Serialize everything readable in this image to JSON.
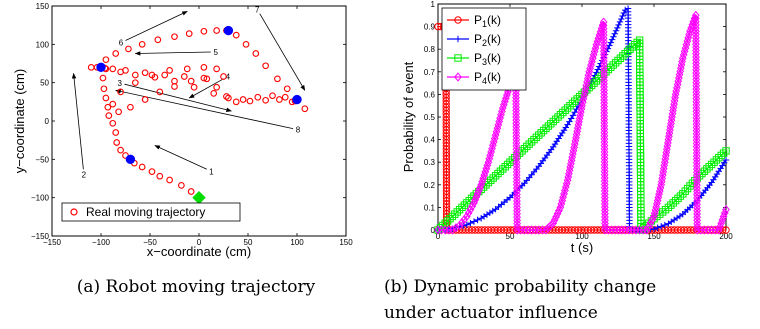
{
  "chart_data": [
    {
      "type": "scatter",
      "caption": "(a) Robot moving trajectory",
      "xlabel": "x−coordinate (cm)",
      "ylabel": "y−coordinate (cm)",
      "xlim": [
        -150,
        150
      ],
      "ylim": [
        -150,
        150
      ],
      "xticks": [
        -150,
        -100,
        -50,
        0,
        50,
        100,
        150
      ],
      "yticks": [
        -150,
        -100,
        -50,
        0,
        50,
        100,
        150
      ],
      "grid": false,
      "legend_position": "bottom",
      "colors": {
        "trajectory": "#ff0000",
        "waypoint": "#0000ff",
        "start": "#00dd00"
      },
      "legend": [
        "Real moving trajectory"
      ],
      "trajectory": [
        [
          0,
          -100
        ],
        [
          -8,
          -92
        ],
        [
          -18,
          -84
        ],
        [
          -30,
          -77
        ],
        [
          -40,
          -72
        ],
        [
          -48,
          -66
        ],
        [
          -58,
          -60
        ],
        [
          -66,
          -55
        ],
        [
          -70,
          -50
        ],
        [
          -75,
          -45
        ],
        [
          -80,
          -38
        ],
        [
          -84,
          -28
        ],
        [
          -85,
          -15
        ],
        [
          -88,
          -3
        ],
        [
          -92,
          7
        ],
        [
          -93,
          18
        ],
        [
          -95,
          30
        ],
        [
          -97,
          42
        ],
        [
          -98,
          56
        ],
        [
          -100,
          70
        ],
        [
          -95,
          80
        ],
        [
          -85,
          88
        ],
        [
          -72,
          94
        ],
        [
          -58,
          100
        ],
        [
          -42,
          106
        ],
        [
          -25,
          110
        ],
        [
          -10,
          114
        ],
        [
          5,
          117
        ],
        [
          18,
          118
        ],
        [
          28,
          118
        ],
        [
          38,
          112
        ],
        [
          48,
          100
        ],
        [
          58,
          88
        ],
        [
          68,
          72
        ],
        [
          80,
          55
        ],
        [
          90,
          42
        ],
        [
          100,
          28
        ],
        [
          108,
          16
        ],
        [
          95,
          25
        ],
        [
          82,
          28
        ],
        [
          68,
          27
        ],
        [
          52,
          26
        ],
        [
          38,
          25
        ],
        [
          28,
          32
        ],
        [
          18,
          44
        ],
        [
          8,
          55
        ],
        [
          -8,
          52
        ],
        [
          -25,
          45
        ],
        [
          -40,
          38
        ],
        [
          -55,
          28
        ],
        [
          -70,
          18
        ],
        [
          -82,
          12
        ],
        [
          -88,
          22
        ],
        [
          -80,
          38
        ],
        [
          -65,
          50
        ],
        [
          -48,
          60
        ],
        [
          -30,
          66
        ],
        [
          -12,
          68
        ],
        [
          5,
          70
        ],
        [
          18,
          68
        ],
        [
          25,
          58
        ],
        [
          5,
          56
        ],
        [
          -15,
          58
        ],
        [
          -35,
          60
        ],
        [
          -55,
          63
        ],
        [
          -75,
          66
        ],
        [
          -88,
          68
        ],
        [
          -96,
          69
        ],
        [
          -104,
          70
        ],
        [
          -110,
          70
        ],
        [
          -95,
          68
        ],
        [
          -80,
          64
        ],
        [
          -65,
          60
        ],
        [
          -45,
          57
        ],
        [
          -25,
          52
        ],
        [
          -5,
          44
        ],
        [
          15,
          36
        ],
        [
          30,
          30
        ],
        [
          45,
          28
        ],
        [
          60,
          31
        ],
        [
          75,
          33
        ],
        [
          88,
          31
        ],
        [
          98,
          26
        ]
      ],
      "waypoints": [
        [
          -70,
          -50
        ],
        [
          -100,
          70
        ],
        [
          30,
          118
        ],
        [
          100,
          28
        ]
      ],
      "start": [
        0,
        -100
      ],
      "annotations": [
        {
          "label": "1",
          "tail": [
            8,
            -63
          ],
          "head": [
            -45,
            -32
          ]
        },
        {
          "label": "2",
          "tail": [
            -118,
            -63
          ],
          "head": [
            -128,
            62
          ]
        },
        {
          "label": "3",
          "tail": [
            -76,
            48
          ],
          "head": [
            33,
            13
          ]
        },
        {
          "label": "4",
          "tail": [
            25,
            55
          ],
          "head": [
            -10,
            30
          ]
        },
        {
          "label": "5",
          "tail": [
            12,
            90
          ],
          "head": [
            -65,
            88
          ]
        },
        {
          "label": "6",
          "tail": [
            -75,
            105
          ],
          "head": [
            -12,
            143
          ]
        },
        {
          "label": "7",
          "tail": [
            62,
            140
          ],
          "head": [
            108,
            40
          ]
        },
        {
          "label": "8",
          "tail": [
            96,
            -10
          ],
          "head": [
            -85,
            40
          ]
        }
      ]
    },
    {
      "type": "line",
      "caption_line1": "(b)  Dynamic  probability  change",
      "caption_line2": "under actuator influence",
      "xlabel": "t (s)",
      "ylabel": "Probability of event",
      "xlim": [
        0,
        200
      ],
      "ylim": [
        0,
        1
      ],
      "xticks": [
        0,
        50,
        100,
        150,
        200
      ],
      "yticks": [
        0,
        0.1,
        0.2,
        0.3,
        0.4,
        0.5,
        0.6,
        0.7,
        0.8,
        0.9,
        1
      ],
      "grid": false,
      "legend_position": "top-left",
      "series": [
        {
          "name": "P",
          "sub": "1",
          "suffix": "(k)",
          "color": "#ff0000",
          "marker": "circle",
          "x": [
            0,
            2,
            4,
            5.5,
            6,
            8,
            200
          ],
          "y": [
            0.9,
            0.9,
            0.9,
            0.9,
            0,
            0,
            0
          ]
        },
        {
          "name": "P",
          "sub": "2",
          "suffix": "(k)",
          "color": "#0000ff",
          "marker": "plus",
          "x": [
            0,
            10,
            20,
            30,
            40,
            50,
            60,
            70,
            80,
            90,
            100,
            110,
            120,
            130,
            132,
            133,
            140,
            150,
            160,
            170,
            180,
            190,
            200
          ],
          "y": [
            0,
            0.006,
            0.023,
            0.052,
            0.092,
            0.144,
            0.207,
            0.282,
            0.368,
            0.466,
            0.576,
            0.697,
            0.829,
            0.973,
            0.98,
            0,
            0,
            0.004,
            0.028,
            0.07,
            0.13,
            0.21,
            0.31
          ]
        },
        {
          "name": "P",
          "sub": "3",
          "suffix": "(k)",
          "color": "#00ee00",
          "marker": "square",
          "x": [
            0,
            10,
            20,
            30,
            40,
            50,
            60,
            70,
            80,
            90,
            100,
            110,
            120,
            130,
            140,
            141,
            150,
            160,
            170,
            180,
            190,
            200
          ],
          "y": [
            0,
            0.06,
            0.12,
            0.18,
            0.24,
            0.3,
            0.36,
            0.42,
            0.48,
            0.54,
            0.6,
            0.66,
            0.72,
            0.78,
            0.84,
            0,
            0.05,
            0.1,
            0.16,
            0.23,
            0.29,
            0.35
          ]
        },
        {
          "name": "P",
          "sub": "4",
          "suffix": "(k)",
          "color": "#ff00ff",
          "marker": "diamond",
          "x": [
            0,
            10,
            15,
            20,
            25,
            30,
            35,
            40,
            45,
            50,
            54,
            55,
            75,
            80,
            85,
            90,
            95,
            100,
            105,
            110,
            115,
            116,
            130,
            145,
            150,
            155,
            160,
            165,
            170,
            175,
            179,
            180,
            195,
            200
          ],
          "y": [
            0,
            0,
            0.02,
            0.06,
            0.12,
            0.2,
            0.3,
            0.42,
            0.54,
            0.64,
            0.7,
            0,
            0,
            0.03,
            0.1,
            0.22,
            0.38,
            0.55,
            0.7,
            0.82,
            0.92,
            0,
            0,
            0,
            0.06,
            0.2,
            0.4,
            0.6,
            0.76,
            0.88,
            0.95,
            0,
            0,
            0.09
          ]
        }
      ]
    }
  ]
}
